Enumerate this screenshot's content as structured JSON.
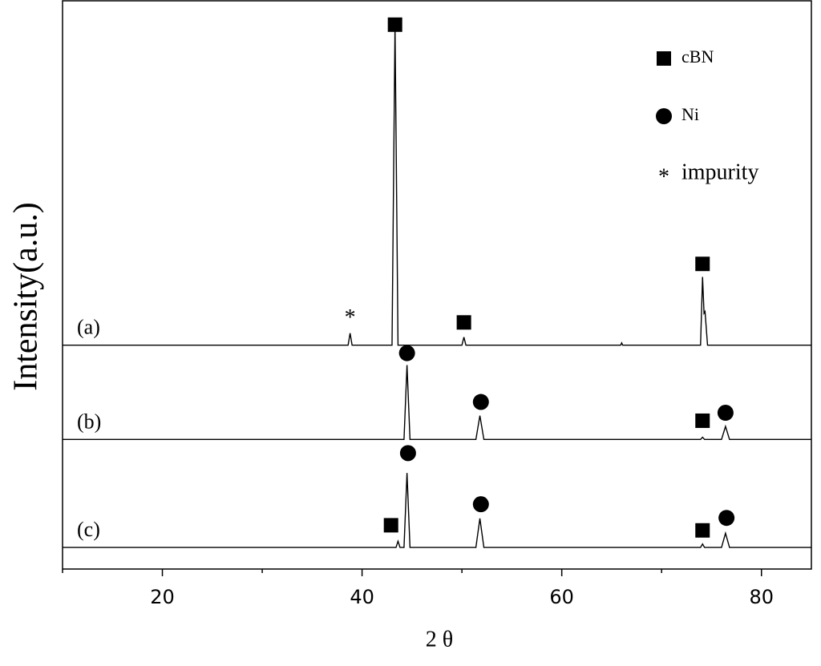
{
  "chart_data": {
    "type": "line",
    "xlabel": "2 θ",
    "ylabel": "Intensity(a.u.)",
    "xlim": [
      10,
      85
    ],
    "xticks": [
      20,
      40,
      60,
      80
    ],
    "xminor": [
      10,
      30,
      50,
      70
    ],
    "ylim": [
      0,
      100
    ],
    "color": "#000000",
    "series": [
      {
        "name": "(a)",
        "color": "#000000",
        "x": [
          10,
          38.6,
          38.8,
          39.0,
          43.0,
          43.3,
          43.6,
          50.0,
          50.2,
          50.4,
          65.9,
          66.0,
          66.1,
          73.9,
          74.1,
          74.25,
          74.35,
          74.6,
          85
        ],
        "values": [
          39.4,
          39.4,
          41.5,
          39.4,
          39.4,
          95.8,
          39.4,
          39.4,
          40.8,
          39.4,
          39.4,
          39.8,
          39.4,
          39.4,
          51.4,
          45.0,
          45.3,
          39.4,
          39.4
        ]
      },
      {
        "name": "(b)",
        "color": "#000000",
        "x": [
          10,
          44.2,
          44.5,
          44.8,
          51.4,
          51.8,
          52.2,
          73.9,
          74.1,
          74.3,
          76.0,
          76.4,
          76.8,
          85
        ],
        "values": [
          22.8,
          22.8,
          35.9,
          22.8,
          22.8,
          27.0,
          22.8,
          22.8,
          23.2,
          22.8,
          22.8,
          25.1,
          22.8,
          22.8
        ]
      },
      {
        "name": "(c)",
        "color": "#000000",
        "x": [
          10,
          43.4,
          43.6,
          43.8,
          44.2,
          44.5,
          44.8,
          51.4,
          51.8,
          52.2,
          73.9,
          74.1,
          74.3,
          76.0,
          76.4,
          76.8,
          85
        ],
        "values": [
          3.8,
          3.8,
          4.9,
          3.8,
          3.8,
          16.9,
          3.8,
          3.8,
          8.9,
          3.8,
          3.8,
          4.4,
          3.8,
          3.8,
          6.3,
          3.8,
          3.8
        ]
      }
    ],
    "annotations": [
      {
        "shape": "square",
        "x": 43.3,
        "y": 95.8
      },
      {
        "shape": "square",
        "x": 50.2,
        "y": 43.4
      },
      {
        "shape": "square",
        "x": 74.1,
        "y": 53.7
      },
      {
        "text": "*",
        "x": 38.8,
        "y": 44.8
      },
      {
        "shape": "circle",
        "x": 44.5,
        "y": 38.0
      },
      {
        "shape": "circle",
        "x": 51.9,
        "y": 29.4
      },
      {
        "shape": "square",
        "x": 74.1,
        "y": 26.1
      },
      {
        "shape": "circle",
        "x": 76.4,
        "y": 27.5
      },
      {
        "shape": "circle",
        "x": 44.6,
        "y": 20.4
      },
      {
        "shape": "circle",
        "x": 51.9,
        "y": 11.4
      },
      {
        "shape": "square",
        "x": 42.9,
        "y": 7.7
      },
      {
        "shape": "square",
        "x": 74.1,
        "y": 6.8
      },
      {
        "shape": "circle",
        "x": 76.5,
        "y": 9.0
      }
    ],
    "legend": [
      {
        "shape": "square",
        "label": "cBN"
      },
      {
        "shape": "circle",
        "label": "Ni"
      },
      {
        "text": "*",
        "label": "impurity"
      }
    ]
  }
}
